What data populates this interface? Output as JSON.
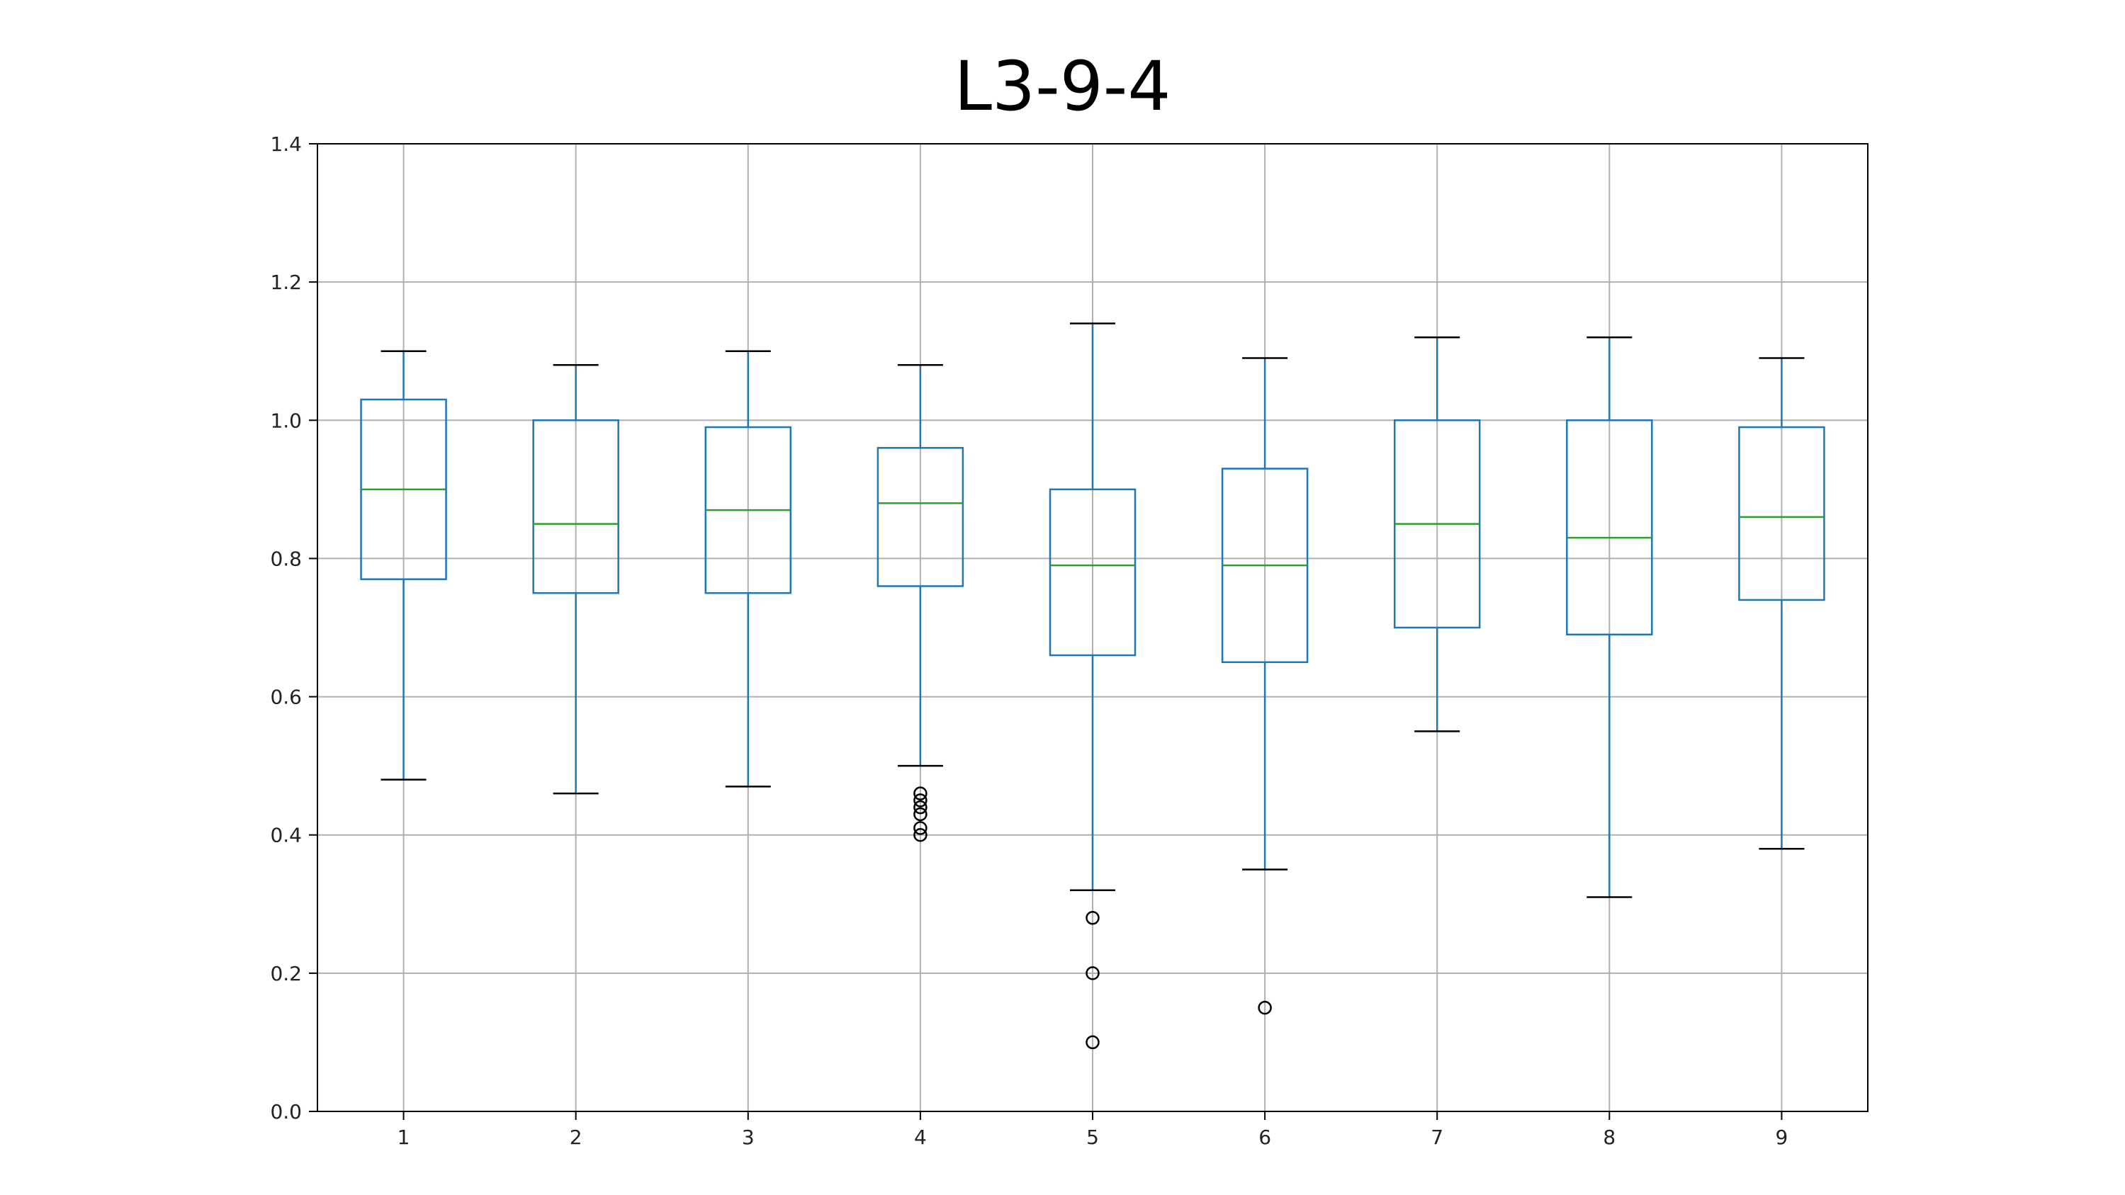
{
  "chart_data": {
    "type": "box",
    "title": "L3-9-4",
    "xlabel": "",
    "ylabel": "",
    "categories": [
      "1",
      "2",
      "3",
      "4",
      "5",
      "6",
      "7",
      "8",
      "9"
    ],
    "ylim": [
      0.0,
      1.4
    ],
    "yticks": [
      "0.0",
      "0.2",
      "0.4",
      "0.6",
      "0.8",
      "1.0",
      "1.2",
      "1.4"
    ],
    "grid": true,
    "boxes": [
      {
        "whislo": 0.48,
        "q1": 0.77,
        "med": 0.9,
        "q3": 1.03,
        "whishi": 1.1,
        "fliers": []
      },
      {
        "whislo": 0.46,
        "q1": 0.75,
        "med": 0.85,
        "q3": 1.0,
        "whishi": 1.08,
        "fliers": []
      },
      {
        "whislo": 0.47,
        "q1": 0.75,
        "med": 0.87,
        "q3": 0.99,
        "whishi": 1.1,
        "fliers": []
      },
      {
        "whislo": 0.5,
        "q1": 0.76,
        "med": 0.88,
        "q3": 0.96,
        "whishi": 1.08,
        "fliers": [
          0.46,
          0.45,
          0.44,
          0.43,
          0.41,
          0.4
        ]
      },
      {
        "whislo": 0.32,
        "q1": 0.66,
        "med": 0.79,
        "q3": 0.9,
        "whishi": 1.14,
        "fliers": [
          0.28,
          0.2,
          0.1
        ]
      },
      {
        "whislo": 0.35,
        "q1": 0.65,
        "med": 0.79,
        "q3": 0.93,
        "whishi": 1.09,
        "fliers": [
          0.15
        ]
      },
      {
        "whislo": 0.55,
        "q1": 0.7,
        "med": 0.85,
        "q3": 1.0,
        "whishi": 1.12,
        "fliers": []
      },
      {
        "whislo": 0.31,
        "q1": 0.69,
        "med": 0.83,
        "q3": 1.0,
        "whishi": 1.12,
        "fliers": []
      },
      {
        "whislo": 0.38,
        "q1": 0.74,
        "med": 0.86,
        "q3": 0.99,
        "whishi": 1.09,
        "fliers": []
      }
    ],
    "colors": {
      "box": "#1f77b4",
      "median": "#2ca02c",
      "whisker_cap": "#000000",
      "flier": "#000000",
      "grid": "#b0b0b0",
      "axes": "#000000"
    }
  }
}
